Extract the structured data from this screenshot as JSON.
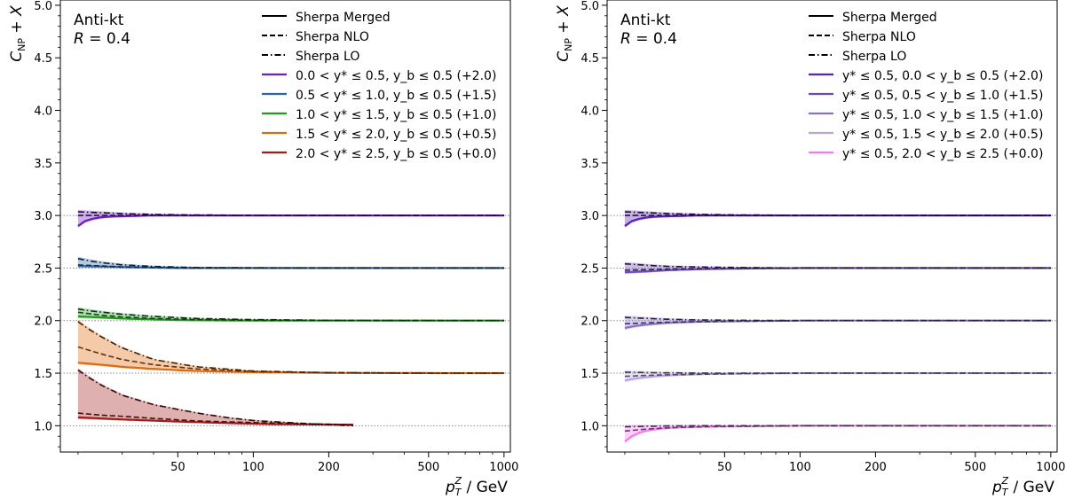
{
  "chart_data": [
    {
      "type": "line",
      "algorithm": "Anti-kt",
      "radius": "R = 0.4",
      "xlabel": "p_T^Z / GeV",
      "ylabel": "C_NP + X",
      "xscale": "log",
      "xlim": [
        17,
        1060
      ],
      "ylim": [
        0.75,
        5.05
      ],
      "x_ticks": [
        50,
        100,
        200,
        500,
        1000
      ],
      "y_ticks": [
        1.0,
        1.5,
        2.0,
        2.5,
        3.0,
        3.5,
        4.0,
        4.5,
        5.0
      ],
      "reference_lines": [
        1.0,
        1.5,
        2.0,
        2.5,
        3.0
      ],
      "legend_position": "top-right",
      "style_legend": [
        {
          "label": "Sherpa Merged",
          "dash": "solid"
        },
        {
          "label": "Sherpa NLO",
          "dash": "dashed"
        },
        {
          "label": "Sherpa LO",
          "dash": "dashdot"
        }
      ],
      "series": [
        {
          "name": "0.0 < y* ≤ 0.5, y_b ≤ 0.5 (+2.0)",
          "color": "#6a1fb5",
          "offset": 3.0,
          "x_range": [
            20,
            1000
          ],
          "merged": {
            "x": [
              20,
              21,
              22,
              24,
              27,
              32,
              40,
              60,
              100,
              1000
            ],
            "y": [
              2.9,
              2.94,
              2.96,
              2.98,
              2.99,
              2.995,
              3.0,
              3.0,
              3.0,
              3.0
            ]
          },
          "nlo": {
            "x": [
              20,
              30,
              50,
              100,
              1000
            ],
            "y": [
              3.0,
              3.0,
              3.0,
              3.0,
              3.0
            ]
          },
          "lo": {
            "x": [
              20,
              25,
              30,
              40,
              60,
              100,
              200,
              1000
            ],
            "y": [
              3.035,
              3.025,
              3.018,
              3.01,
              3.005,
              3.002,
              3.0,
              3.0
            ]
          }
        },
        {
          "name": "0.5 < y* ≤ 1.0, y_b ≤ 0.5 (+1.5)",
          "color": "#2b66a8",
          "offset": 2.5,
          "x_range": [
            20,
            1000
          ],
          "merged": {
            "x": [
              20,
              30,
              50,
              100,
              1000
            ],
            "y": [
              2.52,
              2.51,
              2.5,
              2.5,
              2.5
            ]
          },
          "nlo": {
            "x": [
              20,
              25,
              30,
              40,
              60,
              100,
              1000
            ],
            "y": [
              2.53,
              2.52,
              2.51,
              2.505,
              2.5,
              2.5,
              2.5
            ]
          },
          "lo": {
            "x": [
              20,
              22,
              25,
              30,
              40,
              60,
              100,
              200,
              1000
            ],
            "y": [
              2.59,
              2.57,
              2.55,
              2.53,
              2.515,
              2.505,
              2.502,
              2.5,
              2.5
            ]
          }
        },
        {
          "name": "1.0 < y* ≤ 1.5, y_b ≤ 0.5 (+1.0)",
          "color": "#1f9a1f",
          "offset": 2.0,
          "x_range": [
            20,
            1000
          ],
          "merged": {
            "x": [
              20,
              25,
              30,
              50,
              100,
              1000
            ],
            "y": [
              2.04,
              2.03,
              2.02,
              2.005,
              2.0,
              2.0
            ]
          },
          "nlo": {
            "x": [
              20,
              25,
              30,
              40,
              60,
              100,
              1000
            ],
            "y": [
              2.08,
              2.05,
              2.035,
              2.02,
              2.01,
              2.003,
              2.0
            ]
          },
          "lo": {
            "x": [
              20,
              22,
              25,
              30,
              40,
              60,
              100,
              200,
              500,
              1000
            ],
            "y": [
              2.11,
              2.095,
              2.08,
              2.06,
              2.04,
              2.02,
              2.01,
              2.003,
              2.0,
              2.0
            ]
          }
        },
        {
          "name": "1.5 < y* ≤ 2.0, y_b ≤ 0.5 (+0.5)",
          "color": "#e06a0c",
          "offset": 1.5,
          "x_range": [
            20,
            1000
          ],
          "merged": {
            "x": [
              20,
              25,
              30,
              40,
              60,
              100,
              200,
              1000
            ],
            "y": [
              1.6,
              1.58,
              1.56,
              1.54,
              1.52,
              1.51,
              1.502,
              1.5
            ]
          },
          "nlo": {
            "x": [
              20,
              22,
              25,
              30,
              40,
              60,
              100,
              200,
              500,
              1000
            ],
            "y": [
              1.75,
              1.72,
              1.68,
              1.63,
              1.58,
              1.54,
              1.515,
              1.505,
              1.5,
              1.5
            ]
          },
          "lo": {
            "x": [
              20,
              22,
              25,
              30,
              40,
              60,
              100,
              200,
              500,
              1000
            ],
            "y": [
              1.99,
              1.92,
              1.84,
              1.74,
              1.63,
              1.56,
              1.52,
              1.505,
              1.5,
              1.5
            ]
          }
        },
        {
          "name": "2.0 < y* ≤ 2.5, y_b ≤ 0.5 (+0.0)",
          "color": "#a01c1c",
          "offset": 1.0,
          "x_range": [
            20,
            250
          ],
          "merged": {
            "x": [
              20,
              30,
              50,
              80,
              120,
              250
            ],
            "y": [
              1.08,
              1.06,
              1.04,
              1.025,
              1.015,
              1.01
            ]
          },
          "nlo": {
            "x": [
              20,
              25,
              30,
              40,
              60,
              100,
              150,
              250
            ],
            "y": [
              1.12,
              1.1,
              1.09,
              1.07,
              1.045,
              1.03,
              1.02,
              1.01
            ]
          },
          "lo": {
            "x": [
              20,
              22,
              25,
              30,
              40,
              60,
              80,
              100,
              150,
              250
            ],
            "y": [
              1.53,
              1.46,
              1.38,
              1.29,
              1.2,
              1.12,
              1.075,
              1.05,
              1.025,
              1.0
            ]
          }
        }
      ]
    },
    {
      "type": "line",
      "algorithm": "Anti-kt",
      "radius": "R = 0.4",
      "xlabel": "p_T^Z / GeV",
      "ylabel": "C_NP + X",
      "xscale": "log",
      "xlim": [
        17,
        1060
      ],
      "ylim": [
        0.75,
        5.05
      ],
      "x_ticks": [
        50,
        100,
        200,
        500,
        1000
      ],
      "y_ticks": [
        1.0,
        1.5,
        2.0,
        2.5,
        3.0,
        3.5,
        4.0,
        4.5,
        5.0
      ],
      "reference_lines": [
        1.0,
        1.5,
        2.0,
        2.5,
        3.0
      ],
      "legend_position": "top-right",
      "style_legend": [
        {
          "label": "Sherpa Merged",
          "dash": "solid"
        },
        {
          "label": "Sherpa NLO",
          "dash": "dashed"
        },
        {
          "label": "Sherpa LO",
          "dash": "dashdot"
        }
      ],
      "series": [
        {
          "name": "y* ≤ 0.5, 0.0 < y_b ≤ 0.5 (+2.0)",
          "color": "#5a22b0",
          "offset": 3.0,
          "x_range": [
            20,
            1000
          ],
          "merged": {
            "x": [
              20,
              21,
              22,
              24,
              27,
              32,
              40,
              60,
              100,
              1000
            ],
            "y": [
              2.9,
              2.94,
              2.96,
              2.98,
              2.99,
              2.995,
              3.0,
              3.0,
              3.0,
              3.0
            ]
          },
          "nlo": {
            "x": [
              20,
              30,
              50,
              100,
              1000
            ],
            "y": [
              3.0,
              3.0,
              3.0,
              3.0,
              3.0
            ]
          },
          "lo": {
            "x": [
              20,
              25,
              30,
              40,
              60,
              100,
              200,
              1000
            ],
            "y": [
              3.035,
              3.025,
              3.018,
              3.01,
              3.005,
              3.002,
              3.0,
              3.0
            ]
          }
        },
        {
          "name": "y* ≤ 0.5, 0.5 < y_b ≤ 1.0 (+1.5)",
          "color": "#6c4ab8",
          "offset": 2.5,
          "x_range": [
            20,
            1000
          ],
          "merged": {
            "x": [
              20,
              25,
              30,
              40,
              60,
              100,
              1000
            ],
            "y": [
              2.46,
              2.47,
              2.48,
              2.49,
              2.495,
              2.5,
              2.5
            ]
          },
          "nlo": {
            "x": [
              20,
              25,
              30,
              40,
              60,
              100,
              1000
            ],
            "y": [
              2.48,
              2.485,
              2.49,
              2.495,
              2.5,
              2.5,
              2.5
            ]
          },
          "lo": {
            "x": [
              20,
              25,
              30,
              40,
              60,
              100,
              1000
            ],
            "y": [
              2.54,
              2.525,
              2.515,
              2.51,
              2.505,
              2.5,
              2.5
            ]
          }
        },
        {
          "name": "y* ≤ 0.5, 1.0 < y_b ≤ 1.5 (+1.0)",
          "color": "#8a72c8",
          "offset": 2.0,
          "x_range": [
            20,
            1000
          ],
          "merged": {
            "x": [
              20,
              22,
              25,
              30,
              40,
              60,
              100,
              1000
            ],
            "y": [
              1.93,
              1.95,
              1.965,
              1.98,
              1.99,
              1.995,
              2.0,
              2.0
            ]
          },
          "nlo": {
            "x": [
              20,
              25,
              30,
              40,
              60,
              100,
              1000
            ],
            "y": [
              1.97,
              1.98,
              1.985,
              1.99,
              1.995,
              2.0,
              2.0
            ]
          },
          "lo": {
            "x": [
              20,
              25,
              30,
              40,
              60,
              100,
              1000
            ],
            "y": [
              2.03,
              2.02,
              2.012,
              2.006,
              2.003,
              2.0,
              2.0
            ]
          }
        },
        {
          "name": "y* ≤ 0.5, 1.5 < y_b ≤ 2.0 (+0.5)",
          "color": "#b9a6e0",
          "offset": 1.5,
          "x_range": [
            20,
            1000
          ],
          "merged": {
            "x": [
              20,
              22,
              25,
              30,
              40,
              60,
              100,
              1000
            ],
            "y": [
              1.43,
              1.45,
              1.465,
              1.48,
              1.49,
              1.497,
              1.5,
              1.5
            ]
          },
          "nlo": {
            "x": [
              20,
              25,
              30,
              40,
              60,
              100,
              1000
            ],
            "y": [
              1.47,
              1.48,
              1.485,
              1.49,
              1.495,
              1.5,
              1.5
            ]
          },
          "lo": {
            "x": [
              20,
              25,
              30,
              40,
              60,
              100,
              1000
            ],
            "y": [
              1.51,
              1.505,
              1.503,
              1.501,
              1.5,
              1.5,
              1.5
            ]
          }
        },
        {
          "name": "y* ≤ 0.5, 2.0 < y_b ≤ 2.5 (+0.0)",
          "color": "#f07cf0",
          "offset": 1.0,
          "x_range": [
            20,
            1000
          ],
          "merged": {
            "x": [
              20,
              21,
              22,
              24,
              27,
              30,
              40,
              60,
              100,
              1000
            ],
            "y": [
              0.85,
              0.89,
              0.92,
              0.95,
              0.97,
              0.98,
              0.99,
              0.995,
              1.0,
              1.0
            ]
          },
          "nlo": {
            "x": [
              20,
              25,
              30,
              40,
              60,
              100,
              1000
            ],
            "y": [
              0.95,
              0.97,
              0.98,
              0.99,
              0.995,
              1.0,
              1.0
            ]
          },
          "lo": {
            "x": [
              20,
              25,
              30,
              40,
              60,
              100,
              1000
            ],
            "y": [
              0.99,
              0.995,
              0.998,
              1.0,
              1.0,
              1.0,
              1.0
            ]
          }
        }
      ]
    }
  ]
}
